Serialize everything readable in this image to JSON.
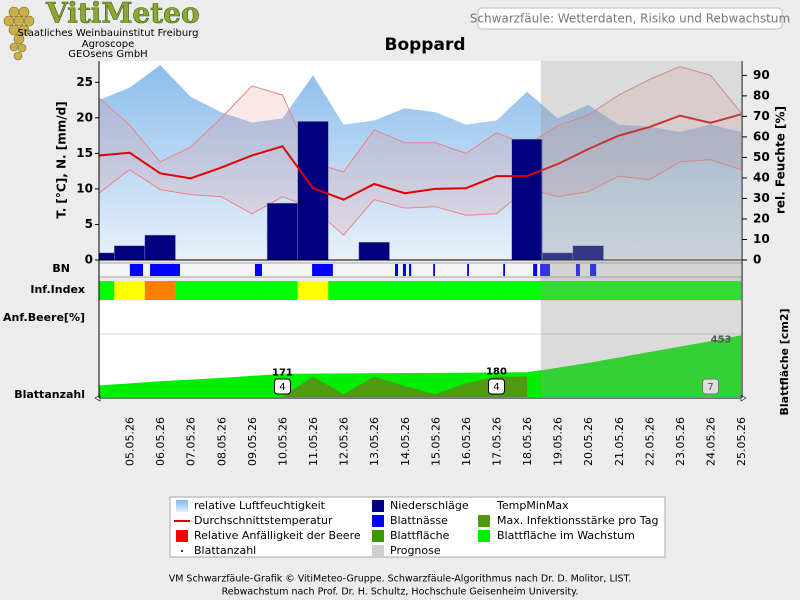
{
  "header": {
    "logo": "VitiMeteo",
    "lines": [
      "Staatliches Weinbauinstitut Freiburg",
      "Agroscope",
      "GEOsens GmbH"
    ],
    "subtitle": "Schwarzfäule: Wetterdaten, Risiko und Rebwachstum"
  },
  "footer": [
    "VM Schwarzfäule-Grafik © VitiMeteo-Gruppe. Schwarzfäule-Algorithmus nach Dr. D. Molitor, LIST.",
    "Rebwachstum nach Prof. Dr. H. Schultz, Hochschule Geisenheim University."
  ],
  "chart_data": {
    "type": "combo",
    "title": "Boppard",
    "y_label": "T. [°C], N. [mm/d]",
    "y2_label": "rel. Feuchte [%]",
    "y3_label": "Blattfläche [cm2]",
    "row_labels": [
      "BN",
      "Inf.Index",
      "Anf.Beere[%]",
      "Blattanzahl"
    ],
    "categories": [
      null,
      "05.05.26",
      "06.05.26",
      "07.05.26",
      "08.05.26",
      "09.05.26",
      "10.05.26",
      "11.05.26",
      "12.05.26",
      "13.05.26",
      "14.05.26",
      "15.05.26",
      "16.05.26",
      "17.05.26",
      "18.05.26",
      "19.05.26",
      "20.05.26",
      "21.05.26",
      "22.05.26",
      "23.05.26",
      "24.05.26",
      "25.05.26"
    ],
    "ylim": [
      0,
      28
    ],
    "yticks": [
      0,
      5,
      10,
      15,
      20,
      25
    ],
    "y2lim": [
      0,
      97
    ],
    "y2ticks": [
      0,
      10,
      20,
      30,
      40,
      50,
      60,
      70,
      80,
      90
    ],
    "y3lim": [
      0,
      455
    ],
    "series": [
      {
        "name": "relative Luftfeuchtigkeit",
        "color": "#8ec1ee",
        "marker": "area",
        "axis": "y2",
        "values": [
          78,
          84,
          95,
          79.5,
          72,
          67,
          69,
          90,
          66,
          68,
          74,
          72,
          66,
          68,
          82,
          69,
          75.6,
          66,
          65,
          62.4,
          66,
          62.4
        ]
      },
      {
        "name": "Durchschnittstemperatur",
        "color": "#e00000",
        "marker": "line",
        "values": [
          14.7,
          15.1,
          12.2,
          11.5,
          13,
          14.7,
          16,
          10.1,
          8.5,
          10.7,
          9.4,
          10,
          10.1,
          11.8,
          11.8,
          13.5,
          15.6,
          17.5,
          18.7,
          20.3,
          19.3,
          20.5
        ]
      },
      {
        "name": "Relative Anfälligkeit der Beere",
        "color": "#ff0000",
        "marker": "box"
      },
      {
        "name": "Blattanzahl",
        "color": "#000000",
        "marker": "dot",
        "values": [
          null,
          null,
          null,
          null,
          null,
          null,
          4,
          null,
          null,
          null,
          null,
          null,
          null,
          4,
          null,
          null,
          null,
          null,
          null,
          null,
          7,
          null
        ]
      },
      {
        "name": "Niederschläge",
        "color": "#00007f",
        "marker": "box",
        "values": [
          1,
          2,
          3.5,
          0,
          0,
          0,
          8,
          19.5,
          0,
          2.5,
          0,
          0,
          0,
          0,
          17,
          1,
          2,
          0,
          0,
          0,
          0,
          0
        ]
      },
      {
        "name": "Blattnässe",
        "color": "#0000ff",
        "marker": "box",
        "periods": [
          [
            1.01,
            1.44
          ],
          [
            1.67,
            2.65
          ],
          [
            5.1,
            5.33
          ],
          [
            6.97,
            7.65
          ],
          [
            9.68,
            9.78
          ],
          [
            9.94,
            10.04
          ],
          [
            10.14,
            10.21
          ],
          [
            10.93,
            10.99
          ],
          [
            12.04,
            12.1
          ],
          [
            13.22,
            13.28
          ],
          [
            14.2,
            14.33
          ],
          [
            14.43,
            14.75
          ],
          [
            15.6,
            15.73
          ],
          [
            16.06,
            16.26
          ]
        ]
      },
      {
        "name": "Blattfläche",
        "color": "#3a9a00",
        "marker": "box"
      },
      {
        "name": "Prognose",
        "color": "#d0d0d0",
        "marker": "box",
        "from": 14.45
      },
      {
        "name": "TempMinMax",
        "color": "#f08080",
        "marker": "none",
        "max": [
          22.8,
          19,
          13.8,
          15.9,
          20,
          24.5,
          23.2,
          13.7,
          12.4,
          18.3,
          16.5,
          16.5,
          15,
          17.9,
          16.2,
          18.9,
          20.4,
          23.2,
          25.4,
          27.2,
          26,
          20.7
        ],
        "min": [
          9.4,
          12.7,
          9.9,
          9.2,
          8.9,
          6.5,
          8.9,
          7.3,
          3.5,
          8.5,
          7.3,
          7.5,
          6.3,
          6.5,
          10.1,
          8.9,
          9.6,
          11.8,
          11.3,
          13.8,
          14.1,
          12.7
        ]
      },
      {
        "name": "Max. Infektionsstärke pro Tag",
        "color": "#4f9a10",
        "marker": "box",
        "axis": "y3",
        "values": [
          null,
          null,
          null,
          null,
          null,
          null,
          0,
          150,
          20,
          150,
          80,
          20,
          100,
          150,
          150,
          null,
          null,
          null,
          null,
          null,
          null,
          null
        ]
      },
      {
        "name": "Blattfläche im Wachstum",
        "color": "#00ee00",
        "marker": "box",
        "axis": "y3",
        "values": [
          85,
          100,
          115,
          128,
          140,
          155,
          171,
          172,
          173,
          174,
          176,
          177,
          178,
          180,
          182,
          215,
          250,
          290,
          330,
          370,
          410,
          453
        ],
        "value_labels": [
          null,
          null,
          null,
          null,
          null,
          null,
          "171",
          null,
          null,
          null,
          null,
          null,
          null,
          "180",
          null,
          null,
          null,
          null,
          null,
          null,
          null,
          "453"
        ]
      }
    ],
    "infection_index": [
      {
        "from": 0,
        "to": 0.5,
        "color": "#00ff00"
      },
      {
        "from": 0.5,
        "to": 1.5,
        "color": "#ffff00"
      },
      {
        "from": 1.5,
        "to": 2.5,
        "color": "#ff8000"
      },
      {
        "from": 2.5,
        "to": 6.5,
        "color": "#00ff00"
      },
      {
        "from": 6.5,
        "to": 7.5,
        "color": "#ffff00"
      },
      {
        "from": 7.5,
        "to": 21,
        "color": "#00ff00"
      }
    ]
  }
}
